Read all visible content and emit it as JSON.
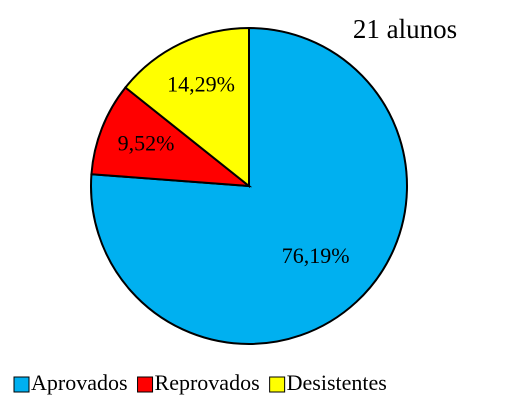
{
  "chart_data": {
    "type": "pie",
    "title": "21 alunos",
    "categories": [
      "Aprovados",
      "Reprovados",
      "Desistentes"
    ],
    "values": [
      76.19,
      9.52,
      14.29
    ],
    "value_labels": [
      "76,19%",
      "9,52%",
      "14,29%"
    ],
    "colors": [
      "#00b0f0",
      "#ff0000",
      "#ffff00"
    ],
    "legend": "bottom"
  }
}
